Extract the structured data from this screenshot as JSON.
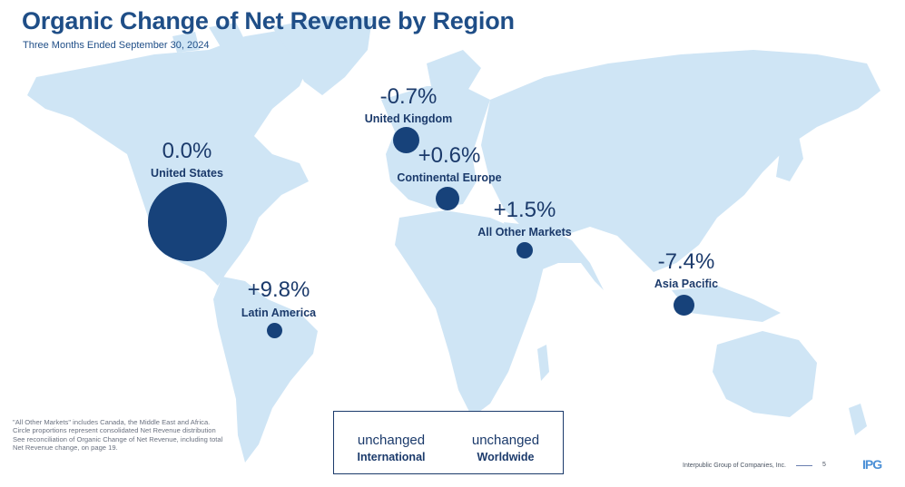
{
  "header": {
    "title": "Organic Change of Net Revenue by Region",
    "subtitle": "Three Months Ended September 30, 2024"
  },
  "regions": [
    {
      "key": "united_states",
      "pct": "0.0%",
      "label": "United States"
    },
    {
      "key": "united_kingdom",
      "pct": "-0.7%",
      "label": "United Kingdom"
    },
    {
      "key": "continental_europe",
      "pct": "+0.6%",
      "label": "Continental Europe"
    },
    {
      "key": "all_other_markets",
      "pct": "+1.5%",
      "label": "All Other Markets"
    },
    {
      "key": "asia_pacific",
      "pct": "-7.4%",
      "label": "Asia Pacific"
    },
    {
      "key": "latin_america",
      "pct": "+9.8%",
      "label": "Latin America"
    }
  ],
  "summary": [
    {
      "value": "unchanged",
      "label": "International"
    },
    {
      "value": "unchanged",
      "label": "Worldwide"
    }
  ],
  "footnote": [
    "\"All Other Markets\" includes Canada, the Middle East and Africa.",
    "Circle proportions represent consolidated Net Revenue distribution",
    "See reconciliation of Organic Change of Net Revenue, including total",
    "Net Revenue change, on page 19."
  ],
  "footer": {
    "company": "Interpublic Group of Companies, Inc.",
    "page": "5",
    "logo": "IPG"
  },
  "colors": {
    "title": "#1f4e87",
    "land": "#cfe5f5",
    "bubble": "#17427a",
    "text": "#1b3a6b"
  }
}
